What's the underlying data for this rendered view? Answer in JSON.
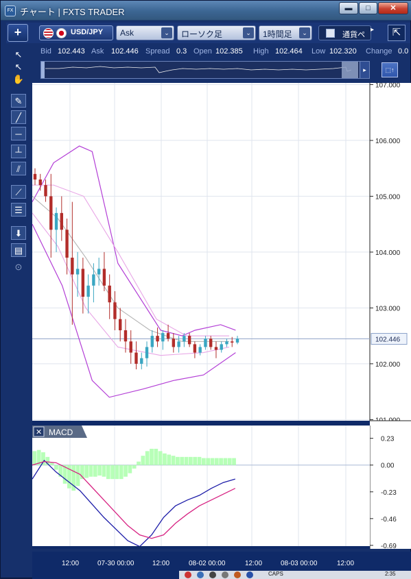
{
  "window": {
    "title": "チャート | FXTS TRADER",
    "app_icon": "FX",
    "controls": {
      "minimize": "▬",
      "maximize": "□",
      "close": "✕"
    }
  },
  "toolbar": {
    "add_label": "+",
    "symbol": "USD/JPY",
    "price_type": "Ask",
    "chart_type": "ローソク足",
    "timeframe": "1時間足",
    "side_panel": "通貨ペ",
    "side_arrow": "▸",
    "detach": "⇱",
    "dropdown_arrow": "⌄"
  },
  "quote": {
    "bid_label": "Bid",
    "bid": "102.443",
    "ask_label": "Ask",
    "ask": "102.446",
    "spread_label": "Spread",
    "spread": "0.3",
    "open_label": "Open",
    "open": "102.385",
    "high_label": "High",
    "high": "102.464",
    "low_label": "Low",
    "low": "102.320",
    "change_label": "Change",
    "change": "0.0"
  },
  "minibar": {
    "scroll_arrow": "▸",
    "screenshot": "⬚↑"
  },
  "tools": [
    "cursor-icon",
    "crosshair-icon",
    "hand-icon",
    "pen-icon",
    "line-icon",
    "horizontal-line-icon",
    "vertical-line-icon",
    "parallel-lines-icon",
    "fan-icon",
    "fibonacci-icon",
    "download-icon",
    "list-icon",
    "camera-icon"
  ],
  "tool_glyphs": [
    "↖",
    "↖",
    "✋",
    "✎",
    "╱",
    "─",
    "┴",
    "⫽",
    "⟋",
    "☰",
    "⬇",
    "▤",
    "⊙"
  ],
  "price_axis": {
    "labels": [
      "107.000",
      "106.000",
      "105.000",
      "104.000",
      "103.000",
      "102.000",
      "101.000"
    ],
    "current_price": "102.446"
  },
  "macd": {
    "title": "MACD",
    "close": "✕",
    "labels": [
      "0.23",
      "0.00",
      "-0.23",
      "-0.46",
      "-0.69"
    ]
  },
  "x_axis": {
    "labels": [
      "12:00",
      "07-30 00:00",
      "12:00",
      "08-02 00:00",
      "12:00",
      "08-03 00:00",
      "12:00"
    ]
  },
  "taskbar": {
    "caps": "CAPS",
    "time": "2:35"
  },
  "colors": {
    "bull": "#3aa6c2",
    "bear": "#b22d2a",
    "bb_outer": "#b33ed6",
    "bb_inner": "#e8a6e6",
    "ma": "#b4b4b4",
    "macd_line": "#1c1ca8",
    "signal_line": "#d72282",
    "histogram": "#b7ffb7"
  },
  "chart_data": [
    {
      "type": "candlestick",
      "title": "USD/JPY",
      "yaxis_ticks": [
        107,
        106,
        105,
        104,
        103,
        102,
        101
      ],
      "ylim": [
        100.98,
        107.03
      ],
      "current_price": 102.446,
      "candles": [
        [
          105.4,
          105.5,
          105.2,
          105.3
        ],
        [
          105.3,
          105.4,
          105.1,
          105.2
        ],
        [
          105.2,
          105.3,
          104.9,
          105.0
        ],
        [
          105.0,
          105.4,
          103.9,
          104.4
        ],
        [
          104.4,
          104.8,
          104.0,
          104.7
        ],
        [
          104.7,
          105.0,
          104.2,
          104.4
        ],
        [
          104.4,
          104.6,
          103.6,
          103.9
        ],
        [
          103.9,
          104.9,
          102.7,
          103.6
        ],
        [
          103.6,
          104.0,
          103.2,
          103.7
        ],
        [
          103.7,
          103.9,
          102.9,
          103.2
        ],
        [
          103.2,
          103.6,
          102.9,
          103.4
        ],
        [
          103.4,
          103.8,
          103.1,
          103.6
        ],
        [
          103.6,
          103.9,
          103.4,
          103.7
        ],
        [
          103.7,
          104.0,
          103.3,
          103.4
        ],
        [
          103.4,
          103.6,
          102.8,
          103.1
        ],
        [
          103.1,
          103.3,
          102.6,
          102.8
        ],
        [
          102.8,
          103.0,
          102.4,
          102.6
        ],
        [
          102.6,
          102.8,
          102.2,
          102.4
        ],
        [
          102.4,
          102.6,
          102.0,
          102.2
        ],
        [
          102.2,
          102.4,
          101.9,
          102.0
        ],
        [
          102.0,
          102.2,
          101.9,
          102.1
        ],
        [
          102.1,
          102.4,
          101.95,
          102.3
        ],
        [
          102.3,
          102.6,
          102.2,
          102.5
        ],
        [
          102.5,
          102.65,
          102.3,
          102.4
        ],
        [
          102.4,
          102.6,
          102.25,
          102.55
        ],
        [
          102.55,
          102.7,
          102.4,
          102.45
        ],
        [
          102.45,
          102.55,
          102.2,
          102.3
        ],
        [
          102.3,
          102.5,
          102.2,
          102.4
        ],
        [
          102.4,
          102.55,
          102.3,
          102.5
        ],
        [
          102.5,
          102.55,
          102.3,
          102.35
        ],
        [
          102.35,
          102.4,
          102.1,
          102.2
        ],
        [
          102.2,
          102.35,
          102.15,
          102.3
        ],
        [
          102.3,
          102.5,
          102.25,
          102.45
        ],
        [
          102.45,
          102.5,
          102.25,
          102.3
        ],
        [
          102.3,
          102.4,
          102.1,
          102.25
        ],
        [
          102.25,
          102.4,
          102.2,
          102.35
        ],
        [
          102.35,
          102.45,
          102.3,
          102.4
        ],
        [
          102.4,
          102.48,
          102.3,
          102.38
        ],
        [
          102.38,
          102.5,
          102.35,
          102.45
        ]
      ],
      "bollinger_upper": [
        [
          0,
          104.9
        ],
        [
          10,
          105.6
        ],
        [
          22,
          105.9
        ],
        [
          28,
          105.8
        ],
        [
          40,
          103.8
        ],
        [
          60,
          102.6
        ],
        [
          70,
          102.5
        ],
        [
          76,
          102.6
        ],
        [
          88,
          102.7
        ],
        [
          95,
          102.6
        ]
      ],
      "bollinger_upper_inner": [
        [
          0,
          105.2
        ],
        [
          10,
          105.2
        ],
        [
          24,
          105.0
        ],
        [
          40,
          104.0
        ],
        [
          58,
          102.8
        ],
        [
          72,
          102.5
        ],
        [
          92,
          102.5
        ]
      ],
      "moving_average": [
        [
          0,
          105.0
        ],
        [
          12,
          104.6
        ],
        [
          25,
          103.9
        ],
        [
          40,
          103.0
        ],
        [
          55,
          102.6
        ],
        [
          70,
          102.4
        ],
        [
          92,
          102.4
        ]
      ],
      "bollinger_lower_inner": [
        [
          0,
          104.7
        ],
        [
          12,
          104.1
        ],
        [
          25,
          103.0
        ],
        [
          40,
          102.3
        ],
        [
          60,
          102.15
        ],
        [
          80,
          102.2
        ],
        [
          92,
          102.3
        ]
      ],
      "bollinger_lower": [
        [
          0,
          104.5
        ],
        [
          14,
          103.4
        ],
        [
          28,
          101.7
        ],
        [
          36,
          101.4
        ],
        [
          52,
          101.55
        ],
        [
          66,
          101.7
        ],
        [
          80,
          101.8
        ],
        [
          95,
          102.2
        ]
      ]
    },
    {
      "type": "line",
      "title": "MACD",
      "yaxis_ticks": [
        0.23,
        0,
        -0.23,
        -0.46,
        -0.69
      ],
      "ylim": [
        -0.72,
        0.34
      ],
      "histogram": [
        0.12,
        0.13,
        0.11,
        0.07,
        0.02,
        -0.04,
        -0.1,
        -0.16,
        -0.2,
        -0.22,
        -0.18,
        -0.12,
        -0.11,
        -0.1,
        -0.1,
        -0.09,
        -0.1,
        -0.12,
        -0.12,
        -0.12,
        -0.12,
        -0.1,
        -0.07,
        -0.03,
        0.03,
        0.08,
        0.12,
        0.14,
        0.14,
        0.12,
        0.1,
        0.09,
        0.08,
        0.07,
        0.07,
        0.07,
        0.07,
        0.07,
        0.07,
        0.06,
        0.06,
        0.06,
        0.06,
        0.06,
        0.06,
        0.06,
        0.06
      ],
      "series": [
        {
          "name": "MACD",
          "points": [
            [
              0,
              -0.12
            ],
            [
              10,
              0.04
            ],
            [
              20,
              -0.06
            ],
            [
              40,
              -0.22
            ],
            [
              60,
              -0.45
            ],
            [
              80,
              -0.65
            ],
            [
              90,
              -0.7
            ],
            [
              100,
              -0.6
            ],
            [
              110,
              -0.45
            ],
            [
              120,
              -0.35
            ],
            [
              130,
              -0.3
            ],
            [
              140,
              -0.26
            ],
            [
              150,
              -0.2
            ],
            [
              160,
              -0.15
            ],
            [
              170,
              -0.12
            ]
          ]
        },
        {
          "name": "Signal",
          "points": [
            [
              0,
              0.0
            ],
            [
              10,
              0.03
            ],
            [
              20,
              0.02
            ],
            [
              40,
              -0.08
            ],
            [
              60,
              -0.3
            ],
            [
              80,
              -0.52
            ],
            [
              90,
              -0.6
            ],
            [
              100,
              -0.63
            ],
            [
              110,
              -0.6
            ],
            [
              120,
              -0.5
            ],
            [
              130,
              -0.42
            ],
            [
              140,
              -0.35
            ],
            [
              150,
              -0.3
            ],
            [
              160,
              -0.25
            ],
            [
              170,
              -0.2
            ]
          ]
        }
      ]
    }
  ]
}
